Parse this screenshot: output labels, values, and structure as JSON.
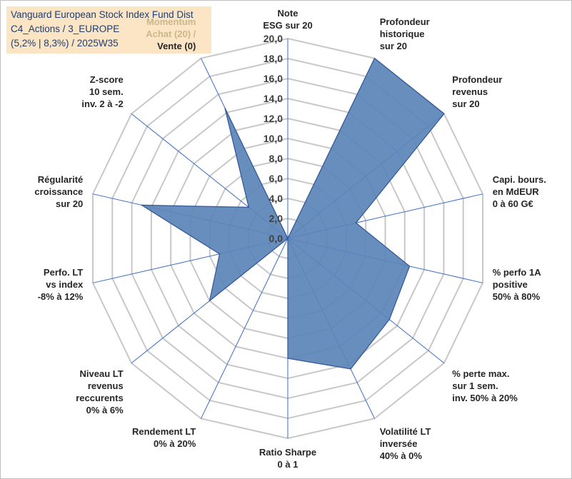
{
  "title": {
    "line1": "Vanguard European Stock Index Fund Dist",
    "line2": "C4_Actions / 3_EUROPE",
    "line3": "(5,2% | 8,3%) / 2025W35"
  },
  "colors": {
    "fill": "#5b84b8",
    "stroke": "#2f5597",
    "grid": "#c8c8c8",
    "spoke": "#3a6cc4",
    "title_bg": "#fbe5c4",
    "momentum_label": "#c9b88a"
  },
  "chart_data": {
    "type": "radar",
    "rmax": 20,
    "grid": true,
    "tick_labels": [
      "0,0",
      "2,0",
      "4,0",
      "6,0",
      "8,0",
      "10,0",
      "12,0",
      "14,0",
      "16,0",
      "18,0",
      "20,0"
    ],
    "axes": [
      {
        "lines": [
          "Note",
          "ESG sur 20"
        ],
        "value": 0
      },
      {
        "lines": [
          "Profondeur",
          "historique",
          "sur 20"
        ],
        "value": 20
      },
      {
        "lines": [
          "Profondeur",
          "revenus",
          "sur 20"
        ],
        "value": 20
      },
      {
        "lines": [
          "Capi. bours.",
          "en MdEUR",
          "0 à 60 G€"
        ],
        "value": 7
      },
      {
        "lines": [
          "% perfo 1A",
          "positive",
          "50% à 80%"
        ],
        "value": 12.5
      },
      {
        "lines": [
          "% perte max.",
          "sur 1 sem.",
          "inv. 50% à 20%"
        ],
        "value": 13
      },
      {
        "lines": [
          "Volatilité LT",
          "inversée",
          "40% à 0%"
        ],
        "value": 14.5
      },
      {
        "lines": [
          "Ratio Sharpe",
          "0 à 1"
        ],
        "value": 12
      },
      {
        "lines": [
          "Rendement LT",
          "0% à 20%"
        ],
        "value": 0
      },
      {
        "lines": [
          "Niveau LT",
          "revenus",
          "reccurents",
          "0% à 6%"
        ],
        "value": 10
      },
      {
        "lines": [
          "Perfo. LT",
          "vs index",
          "-8% à 12%"
        ],
        "value": 7
      },
      {
        "lines": [
          "Régularité",
          "croissance",
          "sur 20"
        ],
        "value": 15
      },
      {
        "lines": [
          "Z-score",
          "10 sem.",
          "inv. 2 à -2"
        ],
        "value": 5
      },
      {
        "lines": [
          "Momentum",
          "Achat (20) /",
          "Vente (0)"
        ],
        "value": 14.5,
        "label_style": [
          "momentum",
          "momentum",
          "normal"
        ]
      }
    ]
  }
}
